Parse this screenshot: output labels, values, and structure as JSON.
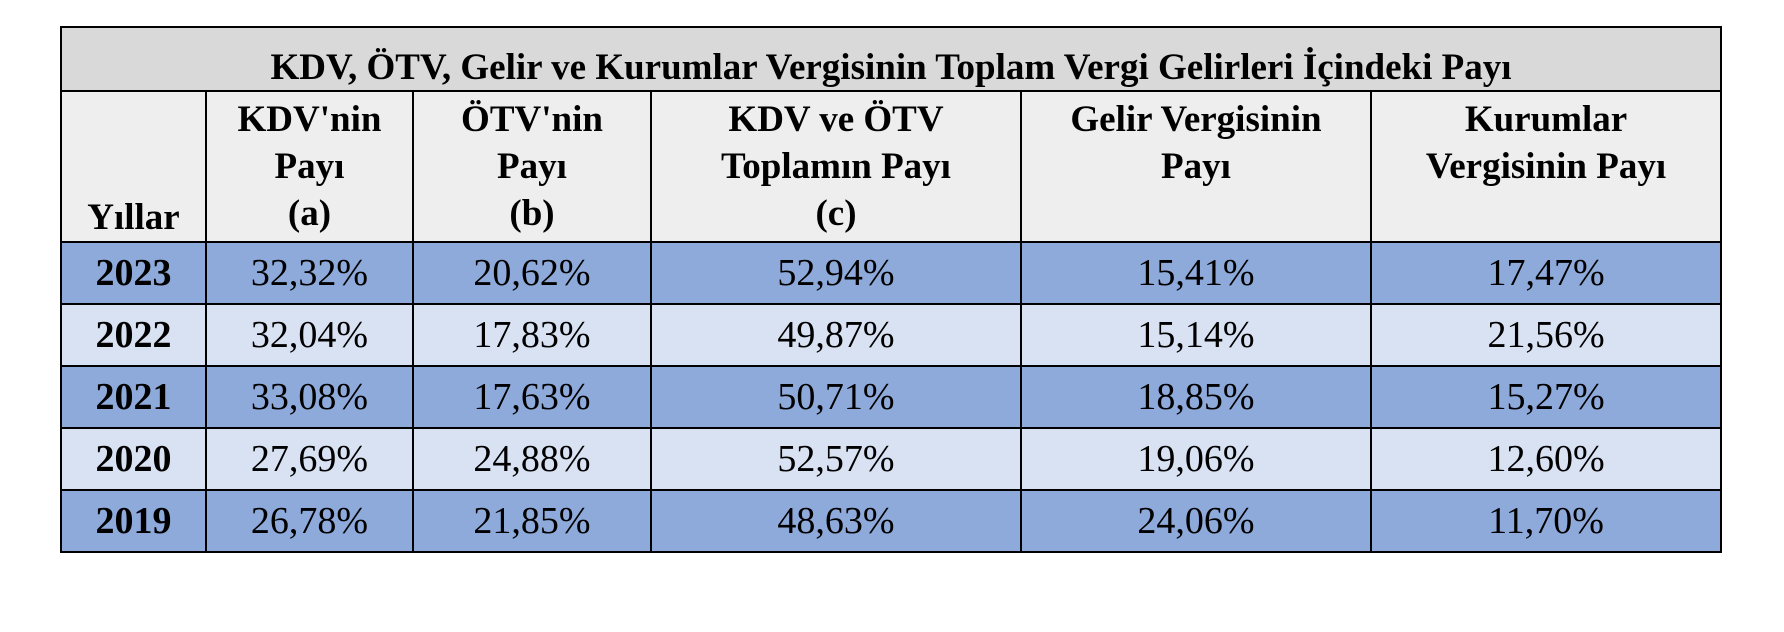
{
  "table": {
    "title": "KDV, ÖTV, Gelir ve Kurumlar Vergisinin Toplam Vergi Gelirleri İçindeki Payı",
    "headers": {
      "year": "Yıllar",
      "kdv": [
        "KDV'nin",
        "Payı",
        "(a)"
      ],
      "otv": [
        "ÖTV'nin",
        "Payı",
        "(b)"
      ],
      "total": [
        "KDV ve ÖTV",
        "Toplamın Payı",
        "(c)"
      ],
      "income": [
        "Gelir Vergisinin",
        "Payı"
      ],
      "corporate": [
        "Kurumlar",
        "Vergisinin Payı"
      ]
    },
    "rows": [
      {
        "year": "2023",
        "kdv": "32,32%",
        "otv": "20,62%",
        "total": "52,94%",
        "income": "15,41%",
        "corporate": "17,47%"
      },
      {
        "year": "2022",
        "kdv": "32,04%",
        "otv": "17,83%",
        "total": "49,87%",
        "income": "15,14%",
        "corporate": "21,56%"
      },
      {
        "year": "2021",
        "kdv": "33,08%",
        "otv": "17,63%",
        "total": "50,71%",
        "income": "18,85%",
        "corporate": "15,27%"
      },
      {
        "year": "2020",
        "kdv": "27,69%",
        "otv": "24,88%",
        "total": "52,57%",
        "income": "19,06%",
        "corporate": "12,60%"
      },
      {
        "year": "2019",
        "kdv": "26,78%",
        "otv": "21,85%",
        "total": "48,63%",
        "income": "24,06%",
        "corporate": "11,70%"
      }
    ]
  },
  "colors": {
    "title_bg": "#d9d9d9",
    "header_bg": "#eeeeee",
    "row_dark": "#8eaadb",
    "row_light": "#d9e2f3"
  }
}
